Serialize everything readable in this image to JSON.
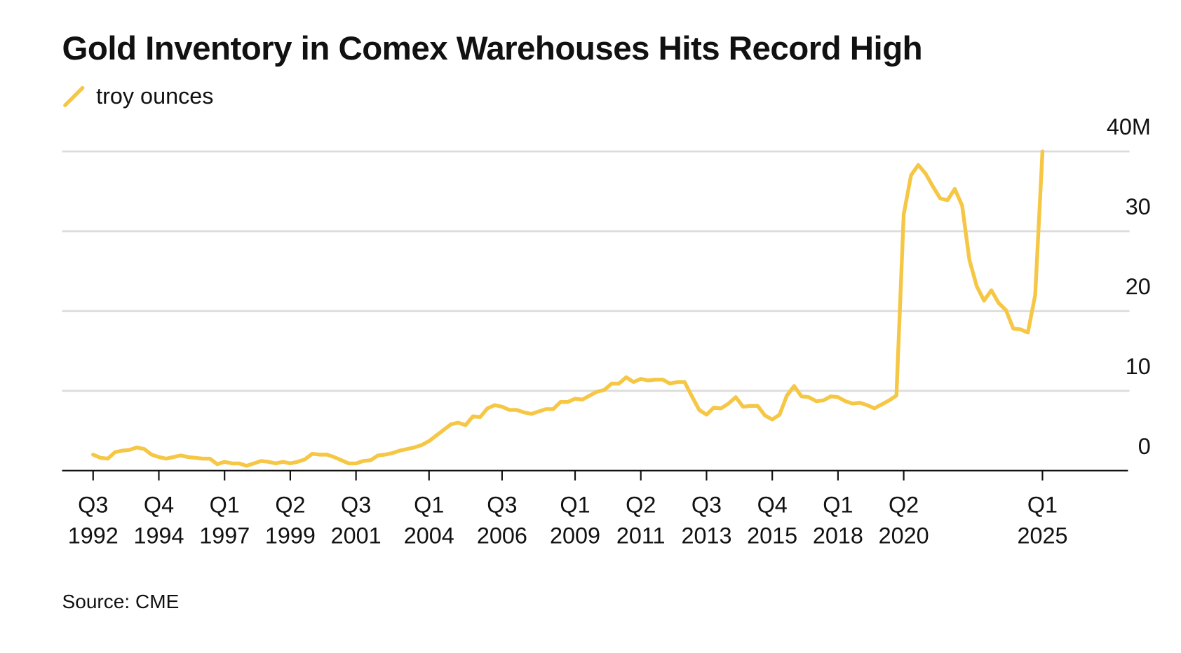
{
  "chart_data": {
    "type": "line",
    "title": "Gold Inventory in Comex Warehouses Hits Record High",
    "source": "Source: CME",
    "categories": [
      "Q3 1992",
      null,
      null,
      null,
      null,
      null,
      null,
      null,
      null,
      "Q4 1994",
      null,
      null,
      null,
      null,
      null,
      null,
      null,
      null,
      "Q1 1997",
      null,
      null,
      null,
      null,
      null,
      null,
      null,
      null,
      "Q2 1999",
      null,
      null,
      null,
      null,
      null,
      null,
      null,
      null,
      "Q3 2001",
      null,
      null,
      null,
      null,
      null,
      null,
      null,
      null,
      null,
      "Q1 2004",
      null,
      null,
      null,
      null,
      null,
      null,
      null,
      null,
      null,
      "Q3 2006",
      null,
      null,
      null,
      null,
      null,
      null,
      null,
      null,
      null,
      "Q1 2009",
      null,
      null,
      null,
      null,
      null,
      null,
      null,
      null,
      "Q2 2011",
      null,
      null,
      null,
      null,
      null,
      null,
      null,
      null,
      "Q3 2013",
      null,
      null,
      null,
      null,
      null,
      null,
      null,
      null,
      "Q4 2015",
      null,
      null,
      null,
      null,
      null,
      null,
      null,
      null,
      "Q1 2018",
      null,
      null,
      null,
      null,
      null,
      null,
      null,
      null,
      "Q2 2020",
      null,
      null,
      null,
      null,
      null,
      null,
      null,
      null,
      null,
      null,
      null,
      null,
      null,
      null,
      null,
      null,
      null,
      null,
      "Q1 2025"
    ],
    "series": [
      {
        "name": "troy ounces",
        "color": "#f6c745",
        "values": [
          2.0,
          1.6,
          1.5,
          2.3,
          2.5,
          2.6,
          2.9,
          2.7,
          2.0,
          1.7,
          1.5,
          1.7,
          1.9,
          1.7,
          1.6,
          1.5,
          1.5,
          0.8,
          1.1,
          0.9,
          0.9,
          0.6,
          0.9,
          1.2,
          1.1,
          0.9,
          1.1,
          0.9,
          1.1,
          1.4,
          2.1,
          2.0,
          2.0,
          1.7,
          1.3,
          0.9,
          0.9,
          1.2,
          1.3,
          1.9,
          2.0,
          2.2,
          2.5,
          2.7,
          2.9,
          3.2,
          3.7,
          4.4,
          5.1,
          5.8,
          6.0,
          5.7,
          6.8,
          6.7,
          7.8,
          8.2,
          8.0,
          7.6,
          7.6,
          7.3,
          7.1,
          7.4,
          7.7,
          7.7,
          8.6,
          8.6,
          9.0,
          8.9,
          9.4,
          9.9,
          10.1,
          10.9,
          10.9,
          11.7,
          11.1,
          11.5,
          11.3,
          11.4,
          11.4,
          10.9,
          11.1,
          11.1,
          9.3,
          7.6,
          7.0,
          7.9,
          7.8,
          8.4,
          9.2,
          8.0,
          8.1,
          8.1,
          6.9,
          6.4,
          7.0,
          9.4,
          10.6,
          9.3,
          9.2,
          8.7,
          8.8,
          9.3,
          9.2,
          8.7,
          8.4,
          8.5,
          8.2,
          7.8,
          8.3,
          8.8,
          9.4,
          32.1,
          37.0,
          38.3,
          37.2,
          35.6,
          34.1,
          33.9,
          35.3,
          33.2,
          26.4,
          23.1,
          21.3,
          22.6,
          21.0,
          20.1,
          17.8,
          17.7,
          17.3,
          22.0,
          40.0
        ]
      }
    ],
    "ylim": [
      0,
      40
    ],
    "yticks": [
      0,
      10,
      20,
      30,
      {
        "value": 40,
        "label": "40M"
      }
    ],
    "grid": true
  }
}
